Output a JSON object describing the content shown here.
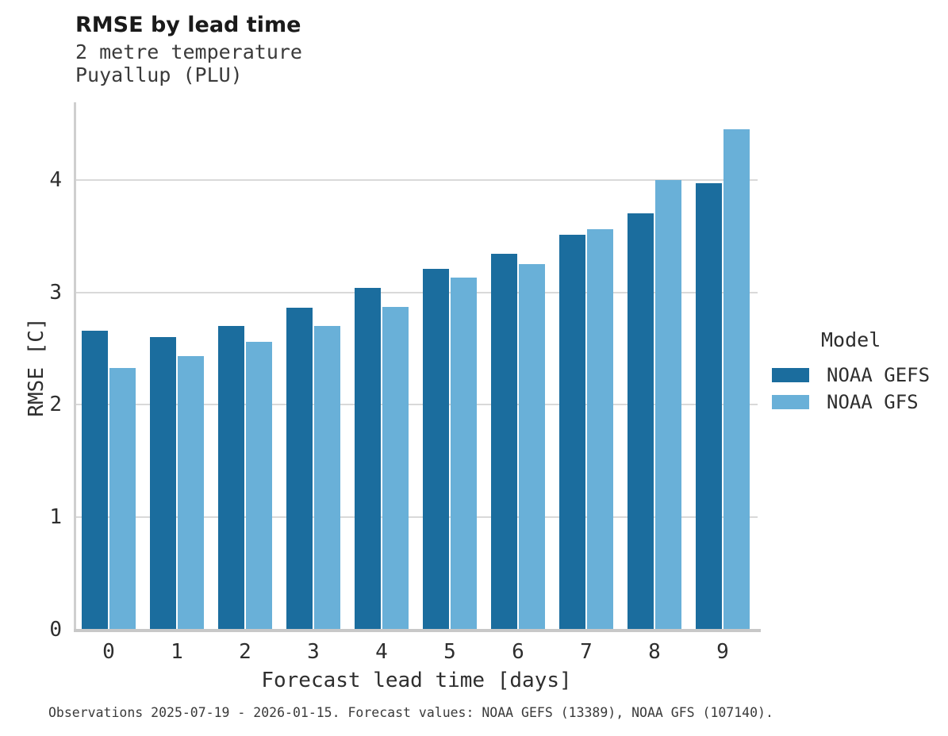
{
  "header": {
    "title": "RMSE by lead time",
    "subtitle_line1": "2 metre temperature",
    "subtitle_line2": "Puyallup (PLU)"
  },
  "chart_data": {
    "type": "bar",
    "title": "RMSE by lead time",
    "subtitle": "2 metre temperature — Puyallup (PLU)",
    "categories": [
      "0",
      "1",
      "2",
      "3",
      "4",
      "5",
      "6",
      "7",
      "8",
      "9"
    ],
    "series": [
      {
        "name": "NOAA GEFS",
        "color": "#1b6d9e",
        "values": [
          2.66,
          2.6,
          2.7,
          2.86,
          3.04,
          3.21,
          3.34,
          3.51,
          3.7,
          3.97
        ]
      },
      {
        "name": "NOAA GFS",
        "color": "#69b0d8",
        "values": [
          2.33,
          2.43,
          2.56,
          2.7,
          2.87,
          3.13,
          3.25,
          3.56,
          4.0,
          4.45
        ]
      }
    ],
    "xlabel": "Forecast lead time [days]",
    "ylabel": "RMSE [C]",
    "ylim": [
      0,
      4.69
    ],
    "yticks": [
      0,
      1,
      2,
      3,
      4
    ],
    "grid": true,
    "legend_position": "right"
  },
  "legend": {
    "title": "Model",
    "items": [
      {
        "label": "NOAA GEFS",
        "color": "#1b6d9e"
      },
      {
        "label": "NOAA GFS",
        "color": "#69b0d8"
      }
    ]
  },
  "caption": "Observations 2025-07-19 - 2026-01-15. Forecast values: NOAA GEFS (13389), NOAA GFS (107140)."
}
